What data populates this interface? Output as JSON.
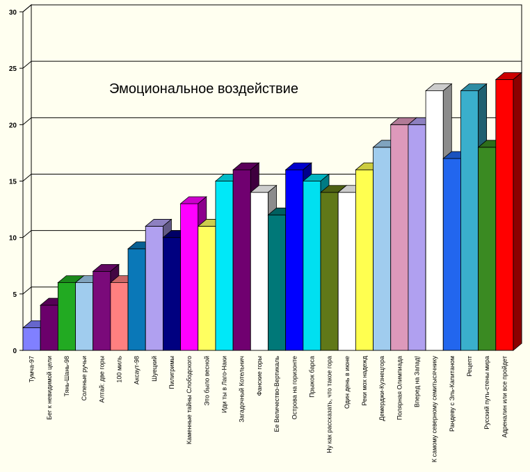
{
  "chart_data": {
    "type": "bar",
    "title": "Эмоциональное воздействие",
    "xlabel": "",
    "ylabel": "",
    "ylim": [
      0,
      30
    ],
    "yticks": [
      0,
      5,
      10,
      15,
      20,
      25,
      30
    ],
    "grid": true,
    "legend": "none",
    "categories": [
      "Тумча-97",
      "Бег к невидимой цели",
      "Тянь-Шань-98",
      "Соленые ручьи",
      "Алтай: две горы",
      "100 миль",
      "Аксаут-98",
      "Шуецкий",
      "Пилигримы",
      "Каменные тайны Слободского",
      "Это было весной",
      "Иди ты в Лаго-Наки",
      "Загадочный Котельнич",
      "Фанские горы",
      "Ее Величество-Вертикаль",
      "Острова на горизонте",
      "Прыжок барса",
      "Ну как рассказать, что такое гора",
      "Один день в июне",
      "Реки мох надежд",
      "Демерджи-Кузнецгора",
      "Полярная Олимпиада",
      "Вперед на Запад!",
      "К самому северному семитысячнику",
      "Рандеву с Эль-Капитаном",
      "Рецепт",
      "Русский путь-стены мира",
      "Адреналин или все пройдет"
    ],
    "values": [
      2,
      4,
      6,
      6,
      7,
      6,
      9,
      11,
      10,
      13,
      11,
      15,
      16,
      14,
      12,
      16,
      15,
      14,
      14,
      16,
      18,
      20,
      20,
      23,
      17,
      23,
      18,
      24
    ],
    "colors": [
      "#8080FF",
      "#6B006B",
      "#22AA22",
      "#A0CCEE",
      "#7A0A7A",
      "#FF8080",
      "#0A78B8",
      "#B0A0F0",
      "#000080",
      "#FF00FF",
      "#FFFF60",
      "#00E8F8",
      "#700070",
      "#FFFFFF",
      "#007878",
      "#0000FF",
      "#00E0F0",
      "#607818",
      "#FFFFFF",
      "#FFFF50",
      "#A0CCEE",
      "#DD99BB",
      "#B0A0F0",
      "#FFFFFF",
      "#2266EE",
      "#3AAFCC",
      "#3A8A22",
      "#FF0000"
    ]
  }
}
